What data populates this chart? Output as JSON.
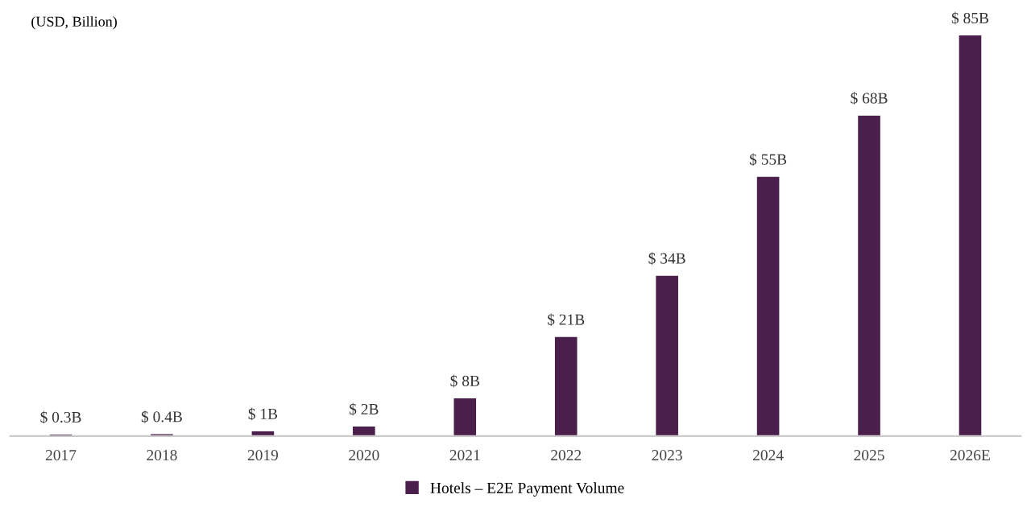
{
  "chart_data": {
    "type": "bar",
    "ylabel": "(USD, Billion)",
    "categories": [
      "2017",
      "2018",
      "2019",
      "2020",
      "2021",
      "2022",
      "2023",
      "2024",
      "2025",
      "2026E"
    ],
    "series": [
      {
        "name": "Hotels – E2E Payment Volume",
        "color": "#4b1f4b",
        "values": [
          0.3,
          0.4,
          1,
          2,
          8,
          21,
          34,
          55,
          68,
          85
        ],
        "value_labels": [
          "$ 0.3B",
          "$ 0.4B",
          "$ 1B",
          "$ 2B",
          "$ 8B",
          "$ 21B",
          "$ 34B",
          "$ 55B",
          "$ 68B",
          "$ 85B"
        ]
      }
    ],
    "legend": "bottom",
    "grid": false
  }
}
